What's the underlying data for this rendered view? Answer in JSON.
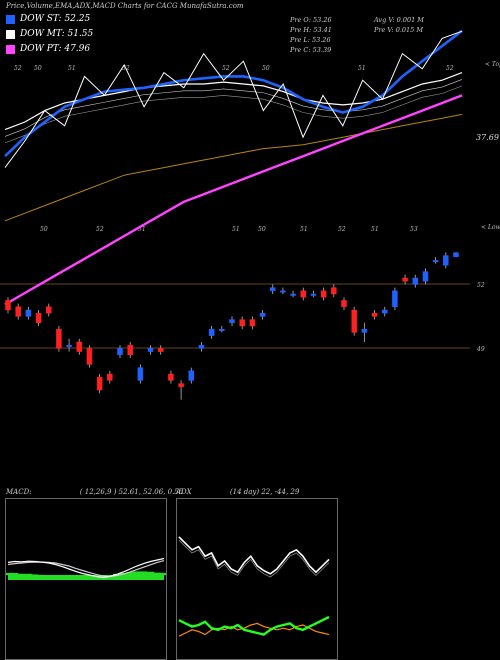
{
  "header": "Price,Volume,EMA,ADX,MACD Charts for CACG MunafaSutra.com",
  "legend": [
    {
      "label": "DOW ST: 52.25",
      "color": "#1e63ff"
    },
    {
      "label": "DOW MT: 51.55",
      "color": "#ffffff"
    },
    {
      "label": "DOW PT: 47.96",
      "color": "#ff44ff"
    }
  ],
  "stats": {
    "col1": [
      "Pre  O: 53.26",
      "Pre  H: 53.41",
      "Pre  L: 53.26",
      "Pre  C: 53.39"
    ],
    "col2": [
      "Avg V: 0.001 M",
      "Pre  V: 0.015 M"
    ]
  },
  "chart_data": [
    {
      "type": "line",
      "title": "",
      "top_axis_label": "< Tops",
      "bottom_axis_label": "< Lows",
      "top_ticks": [
        "52",
        "50",
        "51",
        "52",
        "52",
        "50",
        "51",
        "52"
      ],
      "bottom_ticks": [
        "50",
        "52",
        "51",
        "51",
        "50",
        "51",
        "52",
        "51",
        "53"
      ],
      "price_labels": [
        "37.69",
        "52",
        "49"
      ],
      "series": [
        {
          "name": "DOW ST",
          "color": "#1e63ff",
          "values": [
            50.1,
            50.6,
            51.0,
            51.4,
            51.6,
            51.8,
            51.85,
            51.9,
            52.0,
            52.1,
            52.15,
            52.2,
            52.2,
            52.1,
            51.9,
            51.6,
            51.4,
            51.25,
            51.4,
            51.7,
            52.2,
            52.6,
            53.0,
            53.4
          ]
        },
        {
          "name": "DOW MT",
          "color": "#ffffff",
          "values": [
            50.8,
            51.0,
            51.3,
            51.5,
            51.6,
            51.7,
            51.8,
            51.9,
            51.95,
            52.0,
            52.0,
            52.05,
            52.0,
            51.95,
            51.8,
            51.6,
            51.5,
            51.45,
            51.5,
            51.6,
            51.8,
            52.0,
            52.1,
            52.3
          ]
        },
        {
          "name": "DOW PT",
          "color": "#ff44ff",
          "values": [
            46.2,
            46.5,
            46.8,
            47.1,
            47.4,
            47.7,
            48.0,
            48.3,
            48.6,
            48.9,
            49.1,
            49.3,
            49.5,
            49.7,
            49.9,
            50.1,
            50.3,
            50.5,
            50.7,
            50.9,
            51.1,
            51.3,
            51.5,
            51.7
          ]
        },
        {
          "name": "EMA 50",
          "color": "#b8860b",
          "values": [
            48.4,
            48.6,
            48.8,
            49.0,
            49.2,
            49.4,
            49.6,
            49.7,
            49.8,
            49.9,
            50.0,
            50.1,
            50.2,
            50.3,
            50.35,
            50.4,
            50.5,
            50.6,
            50.7,
            50.8,
            50.9,
            51.0,
            51.1,
            51.2
          ]
        },
        {
          "name": "Close",
          "color": "#ffffff",
          "values": [
            49.8,
            50.5,
            51.3,
            50.9,
            52.2,
            51.7,
            52.5,
            51.4,
            52.3,
            51.9,
            52.8,
            52.1,
            52.6,
            51.3,
            52.0,
            50.6,
            51.7,
            50.9,
            52.1,
            51.6,
            52.8,
            52.4,
            53.2,
            53.39
          ]
        }
      ],
      "candles": [
        {
          "o": 51.9,
          "c": 51.6,
          "h": 52.0,
          "l": 51.5
        },
        {
          "o": 51.7,
          "c": 51.4,
          "h": 51.8,
          "l": 51.3
        },
        {
          "o": 51.4,
          "c": 51.6,
          "h": 51.7,
          "l": 51.3
        },
        {
          "o": 51.5,
          "c": 51.2,
          "h": 51.6,
          "l": 51.1
        },
        {
          "o": 51.7,
          "c": 51.5,
          "h": 51.8,
          "l": 51.4
        },
        {
          "o": 51.0,
          "c": 50.4,
          "h": 51.1,
          "l": 50.3
        },
        {
          "o": 50.5,
          "c": 50.5,
          "h": 50.7,
          "l": 50.3
        },
        {
          "o": 50.6,
          "c": 50.3,
          "h": 50.7,
          "l": 50.2
        },
        {
          "o": 50.4,
          "c": 49.9,
          "h": 50.5,
          "l": 49.8
        },
        {
          "o": 49.5,
          "c": 49.1,
          "h": 49.6,
          "l": 49.0
        },
        {
          "o": 49.6,
          "c": 49.4,
          "h": 49.7,
          "l": 49.3
        },
        {
          "o": 50.2,
          "c": 50.4,
          "h": 50.5,
          "l": 50.1
        },
        {
          "o": 50.5,
          "c": 50.2,
          "h": 50.6,
          "l": 50.1
        },
        {
          "o": 49.4,
          "c": 49.8,
          "h": 49.9,
          "l": 49.3
        },
        {
          "o": 50.3,
          "c": 50.4,
          "h": 50.5,
          "l": 50.2
        },
        {
          "o": 50.4,
          "c": 50.3,
          "h": 50.5,
          "l": 50.2
        },
        {
          "o": 49.6,
          "c": 49.4,
          "h": 49.7,
          "l": 49.3
        },
        {
          "o": 49.3,
          "c": 49.2,
          "h": 49.4,
          "l": 48.8
        },
        {
          "o": 49.4,
          "c": 49.7,
          "h": 49.8,
          "l": 49.3
        },
        {
          "o": 50.4,
          "c": 50.5,
          "h": 50.6,
          "l": 50.3
        },
        {
          "o": 50.8,
          "c": 51.0,
          "h": 51.1,
          "l": 50.7
        },
        {
          "o": 51.0,
          "c": 51.0,
          "h": 51.1,
          "l": 50.9
        },
        {
          "o": 51.2,
          "c": 51.3,
          "h": 51.4,
          "l": 51.1
        },
        {
          "o": 51.3,
          "c": 51.1,
          "h": 51.4,
          "l": 51.0
        },
        {
          "o": 51.3,
          "c": 51.1,
          "h": 51.4,
          "l": 51.0
        },
        {
          "o": 51.4,
          "c": 51.5,
          "h": 51.6,
          "l": 51.3
        },
        {
          "o": 52.2,
          "c": 52.3,
          "h": 52.4,
          "l": 52.1
        },
        {
          "o": 52.2,
          "c": 52.2,
          "h": 52.3,
          "l": 52.1
        },
        {
          "o": 52.1,
          "c": 52.1,
          "h": 52.2,
          "l": 52.0
        },
        {
          "o": 52.2,
          "c": 52.0,
          "h": 52.3,
          "l": 51.9
        },
        {
          "o": 52.1,
          "c": 52.1,
          "h": 52.2,
          "l": 52.0
        },
        {
          "o": 52.2,
          "c": 52.0,
          "h": 52.3,
          "l": 51.9
        },
        {
          "o": 52.3,
          "c": 52.1,
          "h": 52.4,
          "l": 52.0
        },
        {
          "o": 51.9,
          "c": 51.7,
          "h": 52.0,
          "l": 51.6
        },
        {
          "o": 51.6,
          "c": 50.9,
          "h": 51.7,
          "l": 50.8
        },
        {
          "o": 50.9,
          "c": 51.0,
          "h": 51.2,
          "l": 50.6
        },
        {
          "o": 51.5,
          "c": 51.4,
          "h": 51.6,
          "l": 51.3
        },
        {
          "o": 51.5,
          "c": 51.6,
          "h": 51.7,
          "l": 51.4
        },
        {
          "o": 51.7,
          "c": 52.2,
          "h": 52.3,
          "l": 51.6
        },
        {
          "o": 52.6,
          "c": 52.5,
          "h": 52.7,
          "l": 52.4
        },
        {
          "o": 52.4,
          "c": 52.6,
          "h": 52.7,
          "l": 52.3
        },
        {
          "o": 52.5,
          "c": 52.8,
          "h": 52.9,
          "l": 52.4
        },
        {
          "o": 53.15,
          "c": 53.15,
          "h": 53.25,
          "l": 53.05
        },
        {
          "o": 53.0,
          "c": 53.3,
          "h": 53.4,
          "l": 52.9
        },
        {
          "o": 53.26,
          "c": 53.39,
          "h": 53.41,
          "l": 53.26
        }
      ]
    },
    {
      "type": "line",
      "title": "MACD:",
      "params": "( 12,26,9 ) 52.61,  52.06,  0.55",
      "series": [
        {
          "name": "MACD",
          "color": "#ffffff",
          "values": [
            0.42,
            0.45,
            0.44,
            0.46,
            0.45,
            0.43,
            0.4,
            0.35,
            0.28,
            0.2,
            0.12,
            0.05,
            0.0,
            -0.05,
            -0.08,
            -0.05,
            0.02,
            0.1,
            0.2,
            0.3,
            0.38,
            0.45,
            0.5,
            0.55
          ]
        },
        {
          "name": "Signal",
          "color": "#cccccc",
          "values": [
            0.35,
            0.38,
            0.4,
            0.42,
            0.43,
            0.43,
            0.42,
            0.4,
            0.35,
            0.3,
            0.22,
            0.15,
            0.08,
            0.02,
            -0.03,
            -0.05,
            -0.02,
            0.03,
            0.1,
            0.18,
            0.26,
            0.34,
            0.42,
            0.48
          ]
        },
        {
          "name": "Histogram",
          "color": "#22dd22",
          "values": [
            0.07,
            0.07,
            0.04,
            0.04,
            0.02,
            0.0,
            -0.02,
            -0.05,
            -0.07,
            -0.1,
            -0.1,
            -0.1,
            -0.08,
            -0.07,
            -0.05,
            0.0,
            0.04,
            0.07,
            0.1,
            0.12,
            0.12,
            0.11,
            0.08,
            0.07
          ]
        }
      ]
    },
    {
      "type": "line",
      "title": "ADX",
      "params": "(14 day) 22,  -44,  29",
      "series": [
        {
          "name": "ADX",
          "color": "#ffffff",
          "values": [
            70,
            66,
            62,
            64,
            58,
            60,
            52,
            55,
            50,
            48,
            54,
            58,
            52,
            49,
            47,
            50,
            55,
            60,
            62,
            58,
            52,
            48,
            52,
            56
          ]
        },
        {
          "name": "+DI",
          "color": "#22ff22",
          "values": [
            18,
            16,
            14,
            15,
            17,
            13,
            12,
            14,
            13,
            15,
            12,
            11,
            10,
            9,
            12,
            14,
            15,
            16,
            13,
            12,
            14,
            16,
            18,
            20
          ]
        },
        {
          "name": "-DI",
          "color": "#ff8c00",
          "values": [
            8,
            10,
            12,
            11,
            9,
            12,
            13,
            12,
            14,
            12,
            13,
            15,
            16,
            14,
            13,
            12,
            13,
            12,
            14,
            15,
            13,
            11,
            10,
            9
          ]
        }
      ]
    }
  ]
}
